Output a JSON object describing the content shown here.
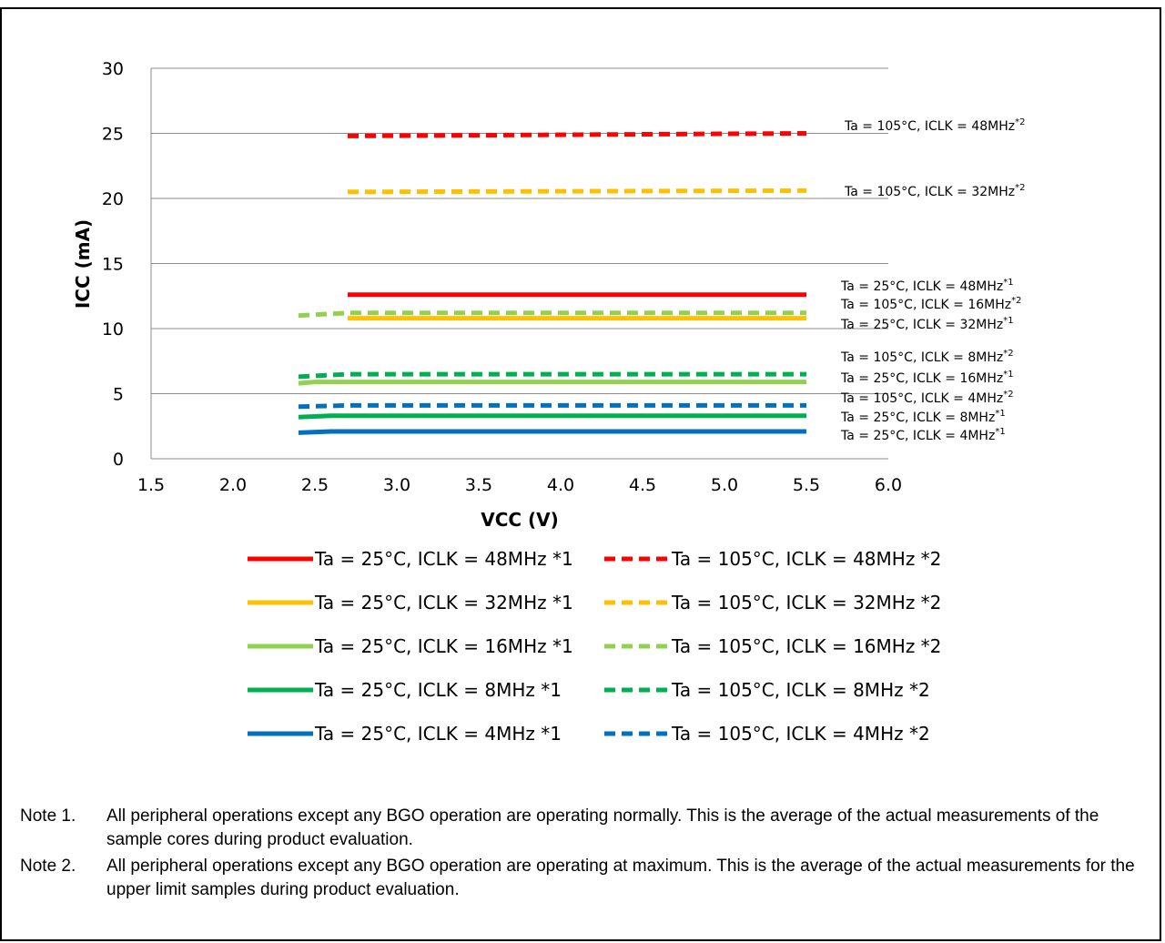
{
  "chart_data": {
    "type": "line",
    "xlabel": "VCC (V)",
    "ylabel": "ICC (mA)",
    "xlim": [
      1.5,
      6.0
    ],
    "ylim": [
      0,
      30
    ],
    "xticks": [
      "1.5",
      "2.0",
      "2.5",
      "3.0",
      "3.5",
      "4.0",
      "4.5",
      "5.0",
      "5.5",
      "6.0"
    ],
    "yticks": [
      "0",
      "5",
      "10",
      "15",
      "20",
      "25",
      "30"
    ],
    "grid": "horizontal",
    "legend": "bottom",
    "series": [
      {
        "name": "Ta = 25°C, ICLK = 48MHz *1",
        "color": "#ff0000",
        "style": "solid",
        "x": [
          2.7,
          5.5
        ],
        "y": [
          12.6,
          12.6
        ],
        "annotation": {
          "main": "Ta = 25°C, ICLK = 48MHz",
          "sup": "*1"
        }
      },
      {
        "name": "Ta = 105°C, ICLK = 48MHz *2",
        "color": "#ff0000",
        "style": "dashed",
        "x": [
          2.7,
          5.5
        ],
        "y": [
          24.8,
          25.0
        ],
        "annotation": {
          "main": "Ta = 105°C, ICLK = 48MHz",
          "sup": "*2"
        }
      },
      {
        "name": "Ta = 25°C, ICLK = 32MHz *1",
        "color": "#ffc000",
        "style": "solid",
        "x": [
          2.7,
          5.5
        ],
        "y": [
          10.8,
          10.8
        ],
        "annotation": {
          "main": "Ta = 25°C, ICLK = 32MHz",
          "sup": "*1"
        }
      },
      {
        "name": "Ta = 105°C, ICLK = 32MHz *2",
        "color": "#ffc000",
        "style": "dashed",
        "x": [
          2.7,
          5.5
        ],
        "y": [
          20.5,
          20.6
        ],
        "annotation": {
          "main": "Ta = 105°C, ICLK = 32MHz",
          "sup": "*2"
        }
      },
      {
        "name": "Ta = 25°C, ICLK = 16MHz *1",
        "color": "#92d050",
        "style": "solid",
        "x": [
          2.4,
          2.5,
          5.5
        ],
        "y": [
          5.8,
          5.9,
          5.9
        ],
        "annotation": {
          "main": "Ta = 25°C, ICLK = 16MHz",
          "sup": "*1"
        }
      },
      {
        "name": "Ta = 105°C, ICLK = 16MHz *2",
        "color": "#92d050",
        "style": "dashed",
        "x": [
          2.4,
          2.7,
          5.5
        ],
        "y": [
          11.0,
          11.2,
          11.2
        ],
        "annotation": {
          "main": "Ta = 105°C, ICLK = 16MHz",
          "sup": "*2"
        }
      },
      {
        "name": "Ta = 25°C, ICLK = 8MHz *1",
        "color": "#00b050",
        "style": "solid",
        "x": [
          2.4,
          2.6,
          5.5
        ],
        "y": [
          3.2,
          3.3,
          3.3
        ],
        "annotation": {
          "main": "Ta = 25°C, ICLK = 8MHz",
          "sup": "*1"
        }
      },
      {
        "name": "Ta = 105°C, ICLK = 8MHz *2",
        "color": "#00b050",
        "style": "dashed",
        "x": [
          2.4,
          2.7,
          5.5
        ],
        "y": [
          6.3,
          6.5,
          6.5
        ],
        "annotation": {
          "main": "Ta = 105°C, ICLK = 8MHz",
          "sup": "*2"
        }
      },
      {
        "name": "Ta = 25°C, ICLK = 4MHz *1",
        "color": "#0070c0",
        "style": "solid",
        "x": [
          2.4,
          2.6,
          5.5
        ],
        "y": [
          2.0,
          2.1,
          2.1
        ],
        "annotation": {
          "main": "Ta = 25°C, ICLK = 4MHz",
          "sup": "*1"
        }
      },
      {
        "name": "Ta = 105°C, ICLK = 4MHz *2",
        "color": "#0070c0",
        "style": "dashed",
        "x": [
          2.4,
          2.7,
          5.5
        ],
        "y": [
          4.0,
          4.1,
          4.1
        ],
        "annotation": {
          "main": "Ta = 105°C, ICLK = 4MHz",
          "sup": "*2"
        }
      }
    ]
  },
  "notes": [
    {
      "label": "Note 1.",
      "text": "All peripheral operations except any BGO operation are operating normally. This is the average of the actual measurements of the sample cores during product evaluation."
    },
    {
      "label": "Note 2.",
      "text": "All peripheral operations except any BGO operation are operating at maximum. This is the average of the actual measurements for the upper limit samples during product evaluation."
    }
  ]
}
